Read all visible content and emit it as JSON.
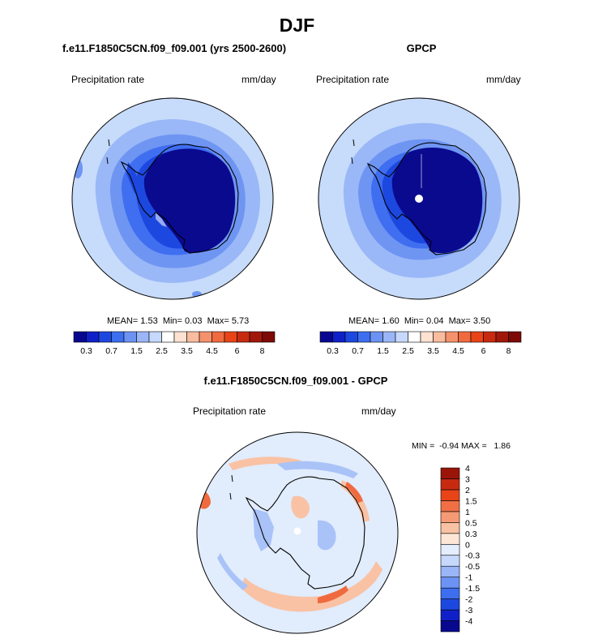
{
  "title": "DJF",
  "panels": [
    {
      "title": "f.e11.F1850C5CN.f09_f09.001 (yrs 2500-2600)",
      "variable": "Precipitation rate",
      "units": "mm/day",
      "stats": {
        "mean_label": "MEAN=",
        "mean": "1.53",
        "min_label": "Min=",
        "min": "0.03",
        "max_label": "Max=",
        "max": "5.73"
      }
    },
    {
      "title": "GPCP",
      "variable": "Precipitation rate",
      "units": "mm/day",
      "stats": {
        "mean_label": "MEAN=",
        "mean": "1.60",
        "min_label": "Min=",
        "min": "0.04",
        "max_label": "Max=",
        "max": "3.50"
      }
    },
    {
      "title": "f.e11.F1850C5CN.f09_f09.001 - GPCP",
      "variable": "Precipitation rate",
      "units": "mm/day",
      "minmax": "MIN =  -0.94 MAX =   1.86"
    }
  ],
  "colorbar_abs": {
    "colors": [
      "#08088f",
      "#1020c8",
      "#1d48e0",
      "#3d6ef0",
      "#6c93f3",
      "#9ab6f7",
      "#c6d8fb",
      "#ffffff",
      "#fde2d2",
      "#f9bc9e",
      "#f5926c",
      "#f06a3f",
      "#e84418",
      "#c82a10",
      "#a0180a",
      "#7d0a05"
    ],
    "labels": [
      "0.3",
      "0.7",
      "1.5",
      "2.5",
      "3.5",
      "4.5",
      "6",
      "8"
    ]
  },
  "colorbar_diff": {
    "colors": [
      "#08088f",
      "#1020c8",
      "#1d48e0",
      "#3d6ef0",
      "#6c93f3",
      "#9ab6f7",
      "#c6d8fb",
      "#e4eefd",
      "#fde6d6",
      "#f9c2a4",
      "#f59a74",
      "#f06f45",
      "#e84418",
      "#c82a10",
      "#9a1508"
    ],
    "labels": [
      "-4",
      "-3",
      "-2",
      "-1.5",
      "-1",
      "-0.5",
      "-0.3",
      "0",
      "0.3",
      "0.5",
      "1",
      "1.5",
      "2",
      "3",
      "4"
    ]
  },
  "map_colors": {
    "abs_bg": "#c7dbfb",
    "abs_ring1": "#9ab8f7",
    "abs_ring2": "#6f95f3",
    "abs_ring3": "#3f6ef0",
    "abs_ring4": "#1d48e0",
    "abs_core": "#0a0a8e",
    "diff_bg": "#e1ecfd",
    "diff_blue": "#a9c3f8",
    "diff_orange": "#f9c2a4",
    "diff_red": "#f06a3f"
  }
}
